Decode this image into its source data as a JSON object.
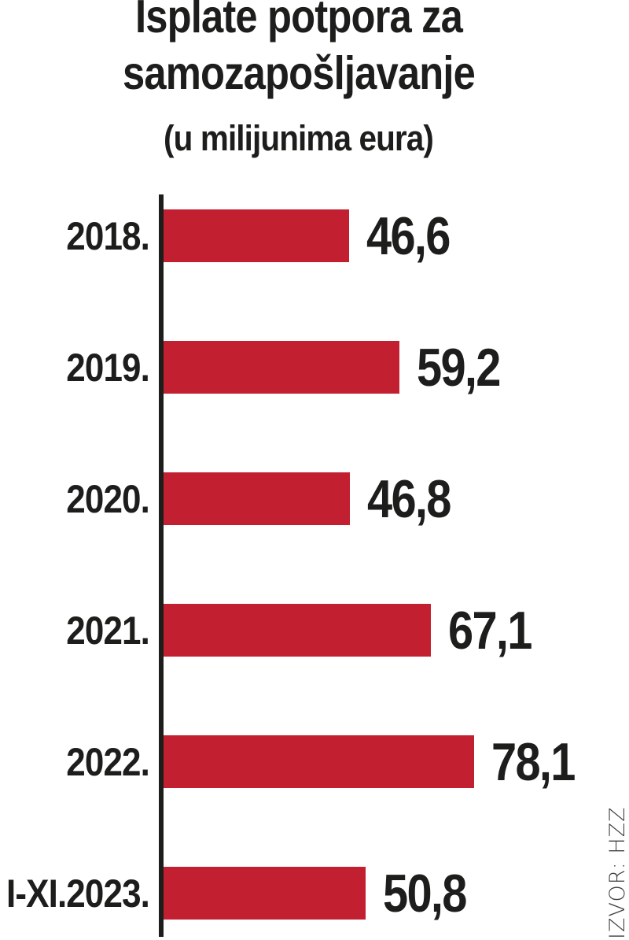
{
  "title": "Isplate potpora za samozapošljavanje",
  "subtitle": "(u milijunima eura)",
  "source": "IZVOR: HZZ",
  "colors": {
    "bar": "#c22031",
    "text": "#1d1d1b",
    "axis": "#1d1d1b",
    "source_text": "#3d3d3d"
  },
  "chart_data": {
    "type": "bar",
    "orientation": "horizontal",
    "title": "Isplate potpora za samozapošljavanje",
    "subtitle": "(u milijunima eura)",
    "unit": "milijuni eura",
    "categories": [
      "2018.",
      "2019.",
      "2020.",
      "2021.",
      "2022.",
      "I-XI.2023."
    ],
    "values": [
      46.6,
      59.2,
      46.8,
      67.1,
      78.1,
      50.8
    ],
    "value_labels": [
      "46,6",
      "59,2",
      "46,8",
      "67,1",
      "78,1",
      "50,8"
    ],
    "xlim": [
      0,
      80
    ],
    "grid": false,
    "legend": false,
    "axis_line": "left",
    "source_label": "IZVOR: HZZ"
  }
}
